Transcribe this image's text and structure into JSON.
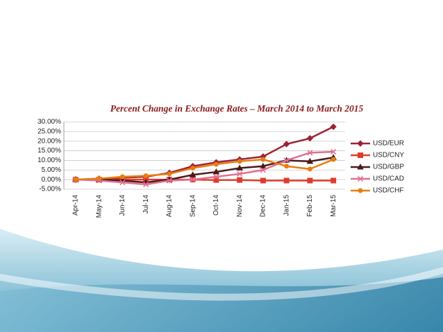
{
  "chart_data": {
    "type": "line",
    "title": "Percent Change in Exchange Rates – March 2014 to March 2015",
    "categories": [
      "Apr-14",
      "May-14",
      "Jun-14",
      "Jul-14",
      "Aug-14",
      "Sep-14",
      "Oct-14",
      "Nov-14",
      "Dec-14",
      "Jan-15",
      "Feb-15",
      "Mar-15"
    ],
    "series": [
      {
        "name": "USD/EUR",
        "color": "#9b2335",
        "marker": "diamond",
        "values": [
          0,
          0.5,
          1,
          1.5,
          3.5,
          7,
          9,
          10.5,
          12,
          18.5,
          21.5,
          27.5
        ]
      },
      {
        "name": "USD/CNY",
        "color": "#e03c2c",
        "marker": "square",
        "values": [
          0,
          0,
          0,
          0,
          0,
          0,
          -0.2,
          -0.2,
          -0.5,
          -0.5,
          -0.5,
          -0.5
        ]
      },
      {
        "name": "USD/GBP",
        "color": "#4a1a1a",
        "marker": "triangle",
        "values": [
          0,
          0,
          -0.5,
          -1.5,
          0,
          2.5,
          4,
          6,
          7,
          10,
          9.5,
          11.5
        ]
      },
      {
        "name": "USD/CAD",
        "color": "#e07090",
        "marker": "x",
        "values": [
          0,
          -0.5,
          -1.5,
          -2.5,
          -0.5,
          0,
          1.5,
          3,
          5,
          10,
          14,
          14.5
        ]
      },
      {
        "name": "USD/CHF",
        "color": "#e87d10",
        "marker": "circle",
        "values": [
          0,
          0.5,
          1.5,
          2,
          3,
          6,
          8,
          9.5,
          10.5,
          7,
          5.5,
          10.5
        ]
      }
    ],
    "ylim": [
      -5,
      30
    ],
    "yticks": [
      {
        "value": 30,
        "label": "30.00%"
      },
      {
        "value": 25,
        "label": "25.00%"
      },
      {
        "value": 20,
        "label": "20.00%"
      },
      {
        "value": 15,
        "label": "15.00%"
      },
      {
        "value": 10,
        "label": "10.00%"
      },
      {
        "value": 5,
        "label": "5.00%"
      },
      {
        "value": 0,
        "label": "0.00%"
      },
      {
        "value": -5,
        "label": "-5.00%"
      }
    ],
    "grid": true,
    "legend": "right"
  }
}
